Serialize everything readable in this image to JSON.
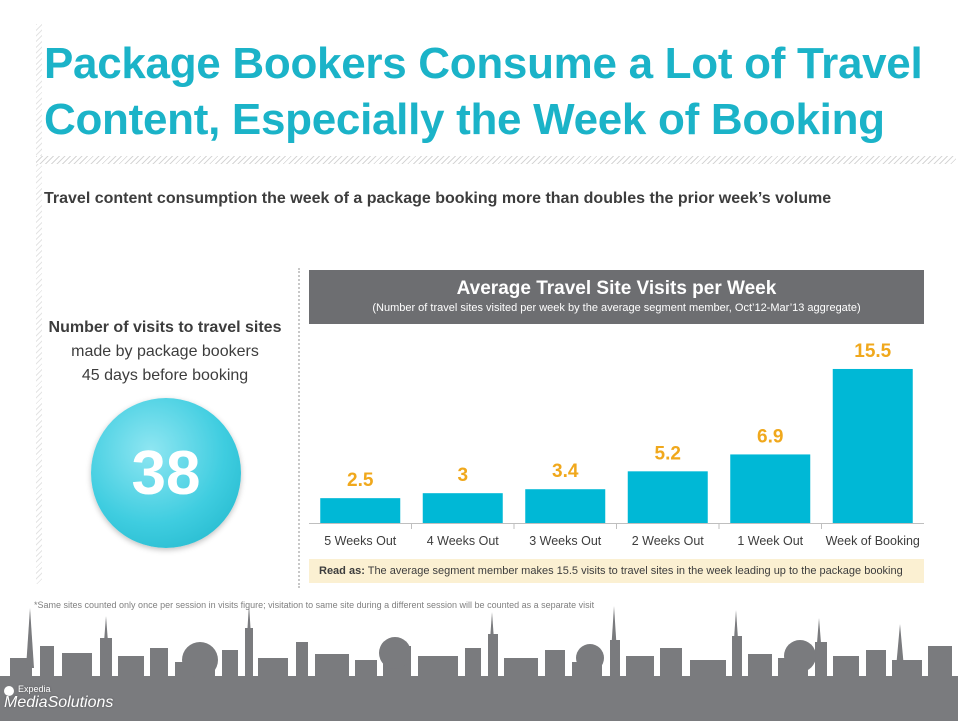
{
  "title": "Package Bookers Consume a Lot of Travel Content, Especially the Week of Booking",
  "subtitle": "Travel content consumption the week of a package booking more than doubles the prior week’s volume",
  "stat": {
    "line1": "Number of visits to travel sites",
    "line2": "made by package bookers",
    "line3": "45 days before booking",
    "value": "38"
  },
  "chart_header": {
    "title": "Average Travel Site Visits per Week",
    "subtitle": "(Number of travel sites visited per week by the average segment member, Oct’12-Mar’13 aggregate)"
  },
  "chart_data": {
    "type": "bar",
    "title": "Average Travel Site Visits per Week",
    "subtitle": "(Number of travel sites visited per week by the average segment member, Oct’12-Mar’13 aggregate)",
    "categories": [
      "5 Weeks Out",
      "4 Weeks Out",
      "3 Weeks Out",
      "2 Weeks Out",
      "1 Week Out",
      "Week of Booking"
    ],
    "values": [
      2.5,
      3,
      3.4,
      5.2,
      6.9,
      15.5
    ],
    "labels": [
      "2.5",
      "3",
      "3.4",
      "5.2",
      "6.9",
      "15.5"
    ],
    "ylim": [
      0,
      16
    ],
    "grid": false,
    "bar_color": "#00b8d6",
    "label_color": "#f0a81c"
  },
  "read_as": {
    "label": "Read as:",
    "text": "The average segment member makes 15.5 visits to travel sites in the week leading up to the package booking"
  },
  "footnote": "*Same sites counted only once per session in visits figure; visitation to same site during a different session will be counted as a separate visit",
  "brand": {
    "line1": "Expedia",
    "line2": "MediaSolutions"
  },
  "colors": {
    "accent": "#1bb3c8",
    "header_bg": "#6d6e71",
    "skyline": "#7a7b7e"
  }
}
